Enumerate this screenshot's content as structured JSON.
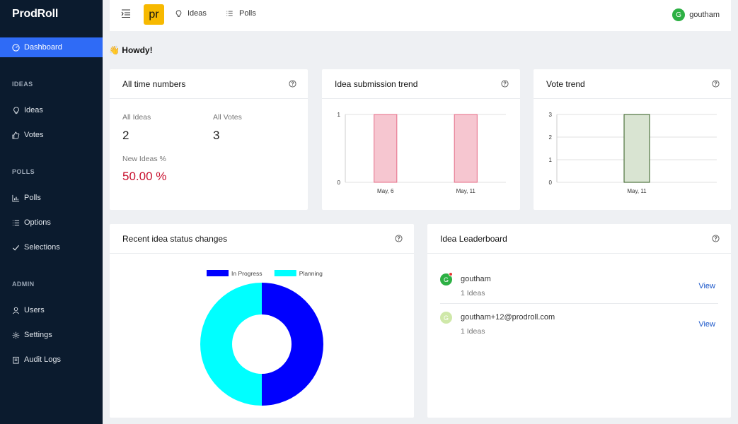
{
  "app": {
    "brand": "ProdRoll"
  },
  "sidebar": {
    "dashboard": "Dashboard",
    "sections": {
      "ideas": "IDEAS",
      "polls": "POLLS",
      "admin": "ADMIN"
    },
    "items": {
      "ideas": "Ideas",
      "votes": "Votes",
      "polls": "Polls",
      "options": "Options",
      "selections": "Selections",
      "users": "Users",
      "settings": "Settings",
      "audit_logs": "Audit Logs"
    }
  },
  "topbar": {
    "logo_text": "pr",
    "ideas_link": "Ideas",
    "polls_link": "Polls",
    "user_initial": "G",
    "user_name": "goutham"
  },
  "greeting": "👋 Howdy!",
  "all_time": {
    "title": "All time numbers",
    "all_ideas_label": "All Ideas",
    "all_ideas_value": "2",
    "all_votes_label": "All Votes",
    "all_votes_value": "3",
    "new_ideas_label": "New Ideas %",
    "new_ideas_value": "50.00 %"
  },
  "idea_trend": {
    "title": "Idea submission trend"
  },
  "vote_trend": {
    "title": "Vote trend"
  },
  "status_changes": {
    "title": "Recent idea status changes"
  },
  "leaderboard": {
    "title": "Idea Leaderboard",
    "rows": [
      {
        "initial": "G",
        "name": "goutham",
        "count": "1 Ideas",
        "action": "View",
        "avatar_color": "#2db044",
        "online": true
      },
      {
        "initial": "G",
        "name": "goutham+12@prodroll.com",
        "count": "1 Ideas",
        "action": "View",
        "avatar_color": "#cfe8a9",
        "online": false
      }
    ]
  },
  "colors": {
    "accent": "#2f6bf6",
    "sidebar_bg": "#0b1b2e",
    "danger": "#c8102e",
    "link": "#1a56c9",
    "donut_in_progress": "#0000ff",
    "donut_planning": "#00ffff"
  },
  "chart_data": [
    {
      "type": "bar",
      "title": "Idea submission trend",
      "categories": [
        "May, 6",
        "May, 11"
      ],
      "values": [
        1,
        1
      ],
      "ylim": [
        0,
        1
      ],
      "yticks": [
        "1",
        "0"
      ],
      "grid": true,
      "color": "#f6c6d0"
    },
    {
      "type": "bar",
      "title": "Vote trend",
      "categories": [
        "May, 11"
      ],
      "values": [
        3
      ],
      "ylim": [
        0,
        3
      ],
      "yticks": [
        "3",
        "2",
        "1",
        "0"
      ],
      "grid": true,
      "color": "#d9e4d2"
    },
    {
      "type": "pie",
      "title": "Recent idea status changes",
      "donut": true,
      "legend": "top",
      "series": [
        {
          "name": "In Progress",
          "value": 1,
          "color": "#0000ff"
        },
        {
          "name": "Planning",
          "value": 1,
          "color": "#00ffff"
        }
      ]
    }
  ]
}
